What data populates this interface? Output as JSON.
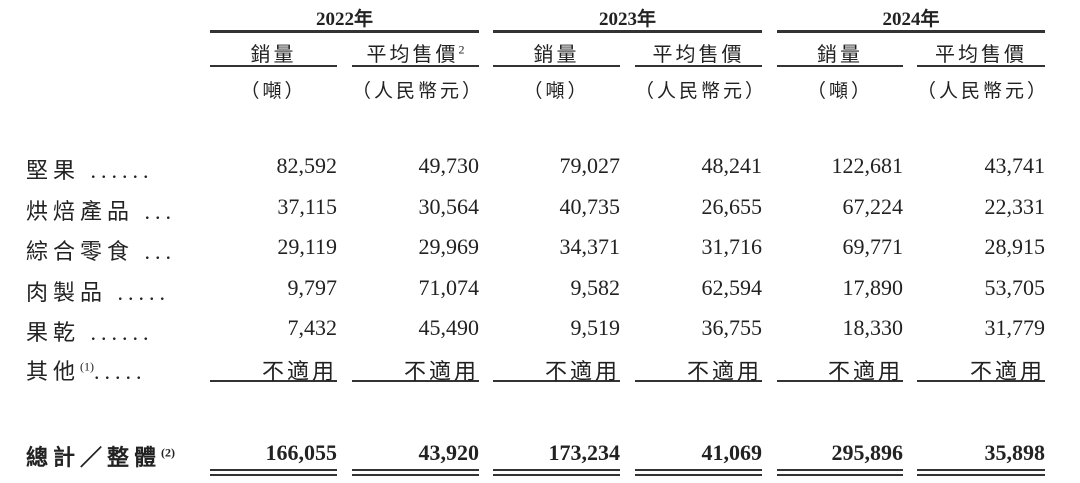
{
  "years": [
    "2022年",
    "2023年",
    "2024年"
  ],
  "col_headers": [
    "銷量",
    "平均售價",
    "銷量",
    "平均售價",
    "銷量",
    "平均售價"
  ],
  "col_header_note": "2",
  "units": [
    "（噸）",
    "（人民幣元）",
    "（噸）",
    "（人民幣元）",
    "（噸）",
    "（人民幣元）"
  ],
  "rows": [
    {
      "label": "堅果 ......",
      "note": "",
      "values": [
        "82,592",
        "49,730",
        "79,027",
        "48,241",
        "122,681",
        "43,741"
      ]
    },
    {
      "label": "烘焙產品 ...",
      "note": "",
      "values": [
        "37,115",
        "30,564",
        "40,735",
        "26,655",
        "67,224",
        "22,331"
      ]
    },
    {
      "label": "綜合零食 ...",
      "note": "",
      "values": [
        "29,119",
        "29,969",
        "34,371",
        "31,716",
        "69,771",
        "28,915"
      ]
    },
    {
      "label": "肉製品 .....",
      "note": "",
      "values": [
        "9,797",
        "71,074",
        "9,582",
        "62,594",
        "17,890",
        "53,705"
      ]
    },
    {
      "label": "果乾 ......",
      "note": "",
      "values": [
        "7,432",
        "45,490",
        "9,519",
        "36,755",
        "18,330",
        "31,779"
      ]
    },
    {
      "label": "其他",
      "note": "(1)",
      "suffix": ".....",
      "values": [
        "不適用",
        "不適用",
        "不適用",
        "不適用",
        "不適用",
        "不適用"
      ]
    }
  ],
  "total": {
    "label": "總計／整體",
    "note": "(2)",
    "values": [
      "166,055",
      "43,920",
      "173,234",
      "41,069",
      "295,896",
      "35,898"
    ]
  }
}
